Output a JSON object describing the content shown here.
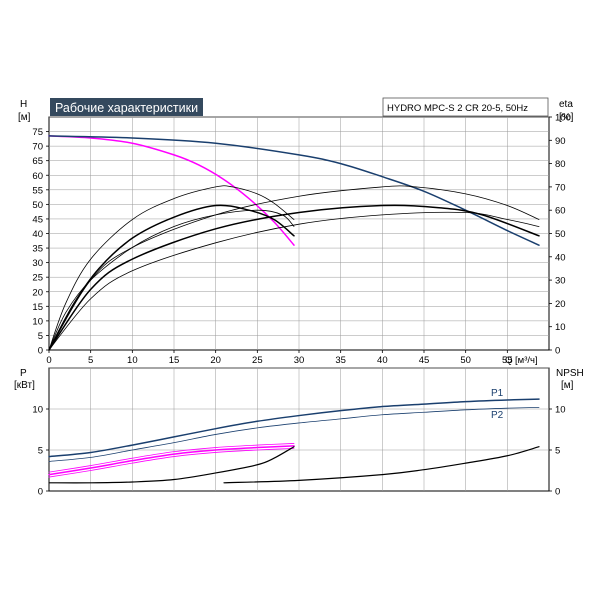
{
  "colors": {
    "magenta": "#ff00ff",
    "navy": "#1a3f6e",
    "black": "#000000",
    "grid": "#9a9a9a",
    "title_bg": "#34495e",
    "title_text": "#ffffff"
  },
  "chart_data": [
    {
      "type": "line",
      "title": "Рабочие характеристики",
      "subtitle": "HYDRO MPC-S 2 CR 20-5, 50Hz",
      "ylabel_name": "H",
      "ylabel_unit": "[м]",
      "y2label_name": "eta",
      "y2label_unit": "[%]",
      "xlabel": "Q [м³/ч]",
      "xlim": [
        0,
        60
      ],
      "ylim": [
        0,
        80
      ],
      "y2lim": [
        0,
        100
      ],
      "grid": true,
      "x_ticks": [
        0,
        5,
        10,
        15,
        20,
        25,
        30,
        35,
        40,
        45,
        50,
        55
      ],
      "y_ticks": [
        0,
        5,
        10,
        15,
        20,
        25,
        30,
        35,
        40,
        45,
        50,
        55,
        60,
        65,
        70,
        75
      ],
      "y2_ticks": [
        0,
        10,
        20,
        30,
        40,
        50,
        60,
        70,
        80,
        90,
        100
      ],
      "series": [
        {
          "axis": "left",
          "color": "magenta",
          "width": 1.5,
          "x": [
            0,
            5,
            10,
            15,
            18,
            21,
            24,
            27,
            29.4
          ],
          "y": [
            73.5,
            72.8,
            71,
            67,
            63.5,
            58.5,
            52,
            44,
            36
          ]
        },
        {
          "axis": "left",
          "color": "navy",
          "width": 1.5,
          "x": [
            0,
            10,
            20,
            30,
            35,
            40,
            45,
            50,
            55,
            58.8
          ],
          "y": [
            73.5,
            72.8,
            71,
            67,
            64,
            59.5,
            54.5,
            48,
            41,
            36
          ]
        },
        {
          "axis": "right",
          "color": "black",
          "width": 0.8,
          "x": [
            0,
            2,
            5,
            10,
            15,
            20,
            22,
            25,
            27,
            29.4
          ],
          "y": [
            0,
            20,
            39,
            56,
            65,
            70,
            70,
            67,
            63,
            56
          ]
        },
        {
          "axis": "right",
          "color": "black",
          "width": 1.5,
          "x": [
            0,
            3,
            6,
            10,
            15,
            20,
            24,
            27,
            29.4
          ],
          "y": [
            0,
            20,
            35,
            48,
            57,
            62,
            60,
            56,
            49
          ]
        },
        {
          "axis": "right",
          "color": "black",
          "width": 0.8,
          "x": [
            0,
            2,
            5,
            10,
            15,
            20,
            25,
            28,
            29.4
          ],
          "y": [
            0,
            16,
            30,
            44,
            53,
            58,
            60,
            58,
            53
          ]
        },
        {
          "axis": "right",
          "color": "black",
          "width": 0.8,
          "x": [
            0,
            5,
            10,
            20,
            30,
            40,
            44,
            50,
            55,
            58.8
          ],
          "y": [
            0,
            30,
            44,
            58,
            66,
            70,
            70,
            67,
            62,
            56
          ]
        },
        {
          "axis": "right",
          "color": "black",
          "width": 1.5,
          "x": [
            0,
            5,
            10,
            20,
            30,
            40,
            47,
            52,
            58.8
          ],
          "y": [
            0,
            26,
            39,
            52,
            59,
            62,
            61,
            58,
            49
          ]
        },
        {
          "axis": "right",
          "color": "black",
          "width": 0.8,
          "x": [
            0,
            5,
            10,
            20,
            30,
            40,
            50,
            55,
            58.8
          ],
          "y": [
            0,
            22,
            34,
            46,
            54,
            58,
            59,
            56,
            53
          ]
        }
      ]
    },
    {
      "type": "line",
      "ylabel_name": "P",
      "ylabel_unit": "[кВт]",
      "y2label_name": "NPSH",
      "y2label_unit": "[м]",
      "xlim": [
        0,
        60
      ],
      "ylim": [
        0,
        15
      ],
      "y2lim": [
        0,
        15
      ],
      "grid": true,
      "y_ticks": [
        0,
        5,
        10
      ],
      "y2_ticks": [
        0,
        5,
        10
      ],
      "series": [
        {
          "name": "P1",
          "axis": "left",
          "color": "navy",
          "width": 1.5,
          "x": [
            0,
            5,
            10,
            15,
            20,
            25,
            30,
            35,
            40,
            45,
            50,
            55,
            58.8
          ],
          "y": [
            4.2,
            4.7,
            5.6,
            6.6,
            7.6,
            8.5,
            9.2,
            9.8,
            10.3,
            10.6,
            10.9,
            11.1,
            11.2
          ]
        },
        {
          "name": "P2",
          "axis": "left",
          "color": "navy",
          "width": 0.8,
          "x": [
            0,
            5,
            10,
            15,
            20,
            25,
            30,
            35,
            40,
            45,
            50,
            55,
            58.8
          ],
          "y": [
            3.6,
            4.1,
            5.0,
            5.9,
            6.9,
            7.7,
            8.3,
            8.8,
            9.3,
            9.6,
            9.9,
            10.1,
            10.2
          ]
        },
        {
          "axis": "left",
          "color": "magenta",
          "width": 1.5,
          "x": [
            0,
            5,
            10,
            15,
            20,
            25,
            29.4
          ],
          "y": [
            2.0,
            2.8,
            3.7,
            4.5,
            5.0,
            5.3,
            5.5
          ]
        },
        {
          "axis": "left",
          "color": "magenta",
          "width": 0.8,
          "x": [
            0,
            5,
            10,
            15,
            20,
            25,
            29.4
          ],
          "y": [
            2.3,
            3.1,
            4.0,
            4.8,
            5.3,
            5.6,
            5.8
          ]
        },
        {
          "axis": "left",
          "color": "magenta",
          "width": 0.8,
          "x": [
            0,
            5,
            10,
            15,
            20,
            25,
            29.4
          ],
          "y": [
            1.7,
            2.5,
            3.4,
            4.2,
            4.7,
            5.0,
            5.2
          ]
        },
        {
          "axis": "right",
          "color": "black",
          "width": 1.2,
          "x": [
            0,
            5,
            10,
            15,
            20,
            25,
            27,
            29.4
          ],
          "y": [
            1.0,
            1.0,
            1.1,
            1.4,
            2.2,
            3.2,
            4.0,
            5.4
          ]
        },
        {
          "axis": "right",
          "color": "black",
          "width": 1.2,
          "x": [
            21,
            30,
            40,
            45,
            50,
            55,
            58.8
          ],
          "y": [
            1.0,
            1.3,
            2.0,
            2.6,
            3.4,
            4.3,
            5.4
          ]
        }
      ]
    }
  ]
}
